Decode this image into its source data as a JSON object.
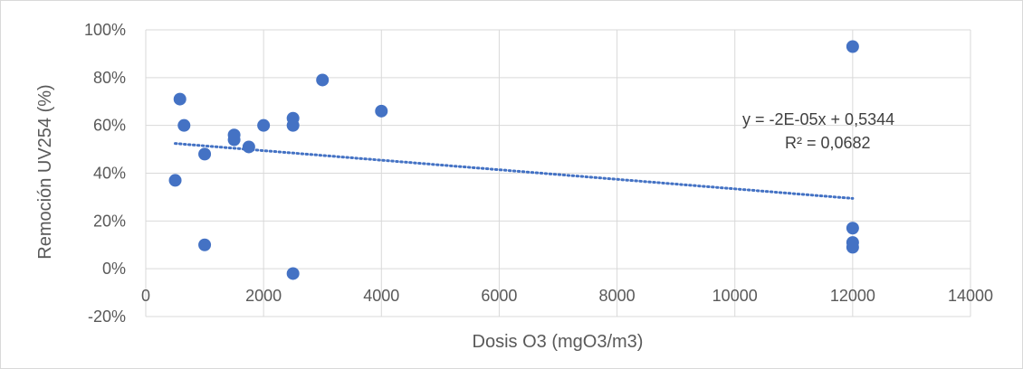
{
  "chart_data": {
    "type": "scatter",
    "xlabel": "Dosis O3 (mgO3/m3)",
    "ylabel": "Remoción UV254 (%)",
    "xlim": [
      0,
      14000
    ],
    "ylim": [
      -20,
      100
    ],
    "x_ticks": [
      "0",
      "2000",
      "4000",
      "6000",
      "8000",
      "10000",
      "12000",
      "14000"
    ],
    "y_ticks": [
      "-20%",
      "0%",
      "20%",
      "40%",
      "60%",
      "80%",
      "100%"
    ],
    "grid": true,
    "series": [
      {
        "color": "#4472C4",
        "points": [
          {
            "x": 500,
            "y": 37
          },
          {
            "x": 580,
            "y": 71
          },
          {
            "x": 650,
            "y": 60
          },
          {
            "x": 1000,
            "y": 48
          },
          {
            "x": 1000,
            "y": 10
          },
          {
            "x": 1500,
            "y": 56
          },
          {
            "x": 1500,
            "y": 54
          },
          {
            "x": 1750,
            "y": 51
          },
          {
            "x": 2000,
            "y": 60
          },
          {
            "x": 2500,
            "y": 63
          },
          {
            "x": 2500,
            "y": 60
          },
          {
            "x": 2500,
            "y": -2
          },
          {
            "x": 3000,
            "y": 79
          },
          {
            "x": 4000,
            "y": 66
          },
          {
            "x": 12000,
            "y": 93
          },
          {
            "x": 12000,
            "y": 17
          },
          {
            "x": 12000,
            "y": 11
          },
          {
            "x": 12000,
            "y": 9
          }
        ]
      }
    ],
    "trendline": {
      "type": "linear",
      "style": "dotted",
      "color": "#4472C4",
      "x_start": 500,
      "x_end": 12000,
      "equation": "y = -2E-05x + 0,5344",
      "r_squared": "R² = 0,0682"
    }
  }
}
